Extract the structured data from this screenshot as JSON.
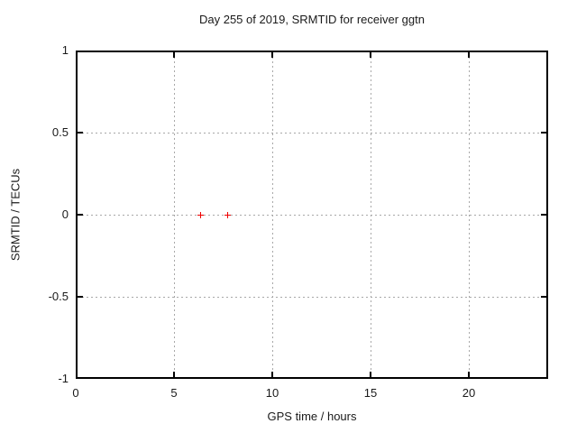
{
  "chart_data": {
    "type": "scatter",
    "title": "Day 255 of 2019, SRMTID for receiver ggtn",
    "xlabel": "GPS time / hours",
    "ylabel": "SRMTID / TECUs",
    "xlim": [
      0,
      24
    ],
    "ylim": [
      -1,
      1
    ],
    "xticks": [
      "0",
      "5",
      "10",
      "15",
      "20"
    ],
    "yticks": [
      "1",
      "0.5",
      "0",
      "-0.5",
      "-1"
    ],
    "grid": true,
    "grid_style": "dashed",
    "grid_color": "#a8a8a8",
    "legend": false,
    "marker": "plus",
    "marker_color": "#ee0000",
    "points": [
      {
        "x": 6.28,
        "y": 0
      },
      {
        "x": 7.65,
        "y": 0
      }
    ]
  }
}
